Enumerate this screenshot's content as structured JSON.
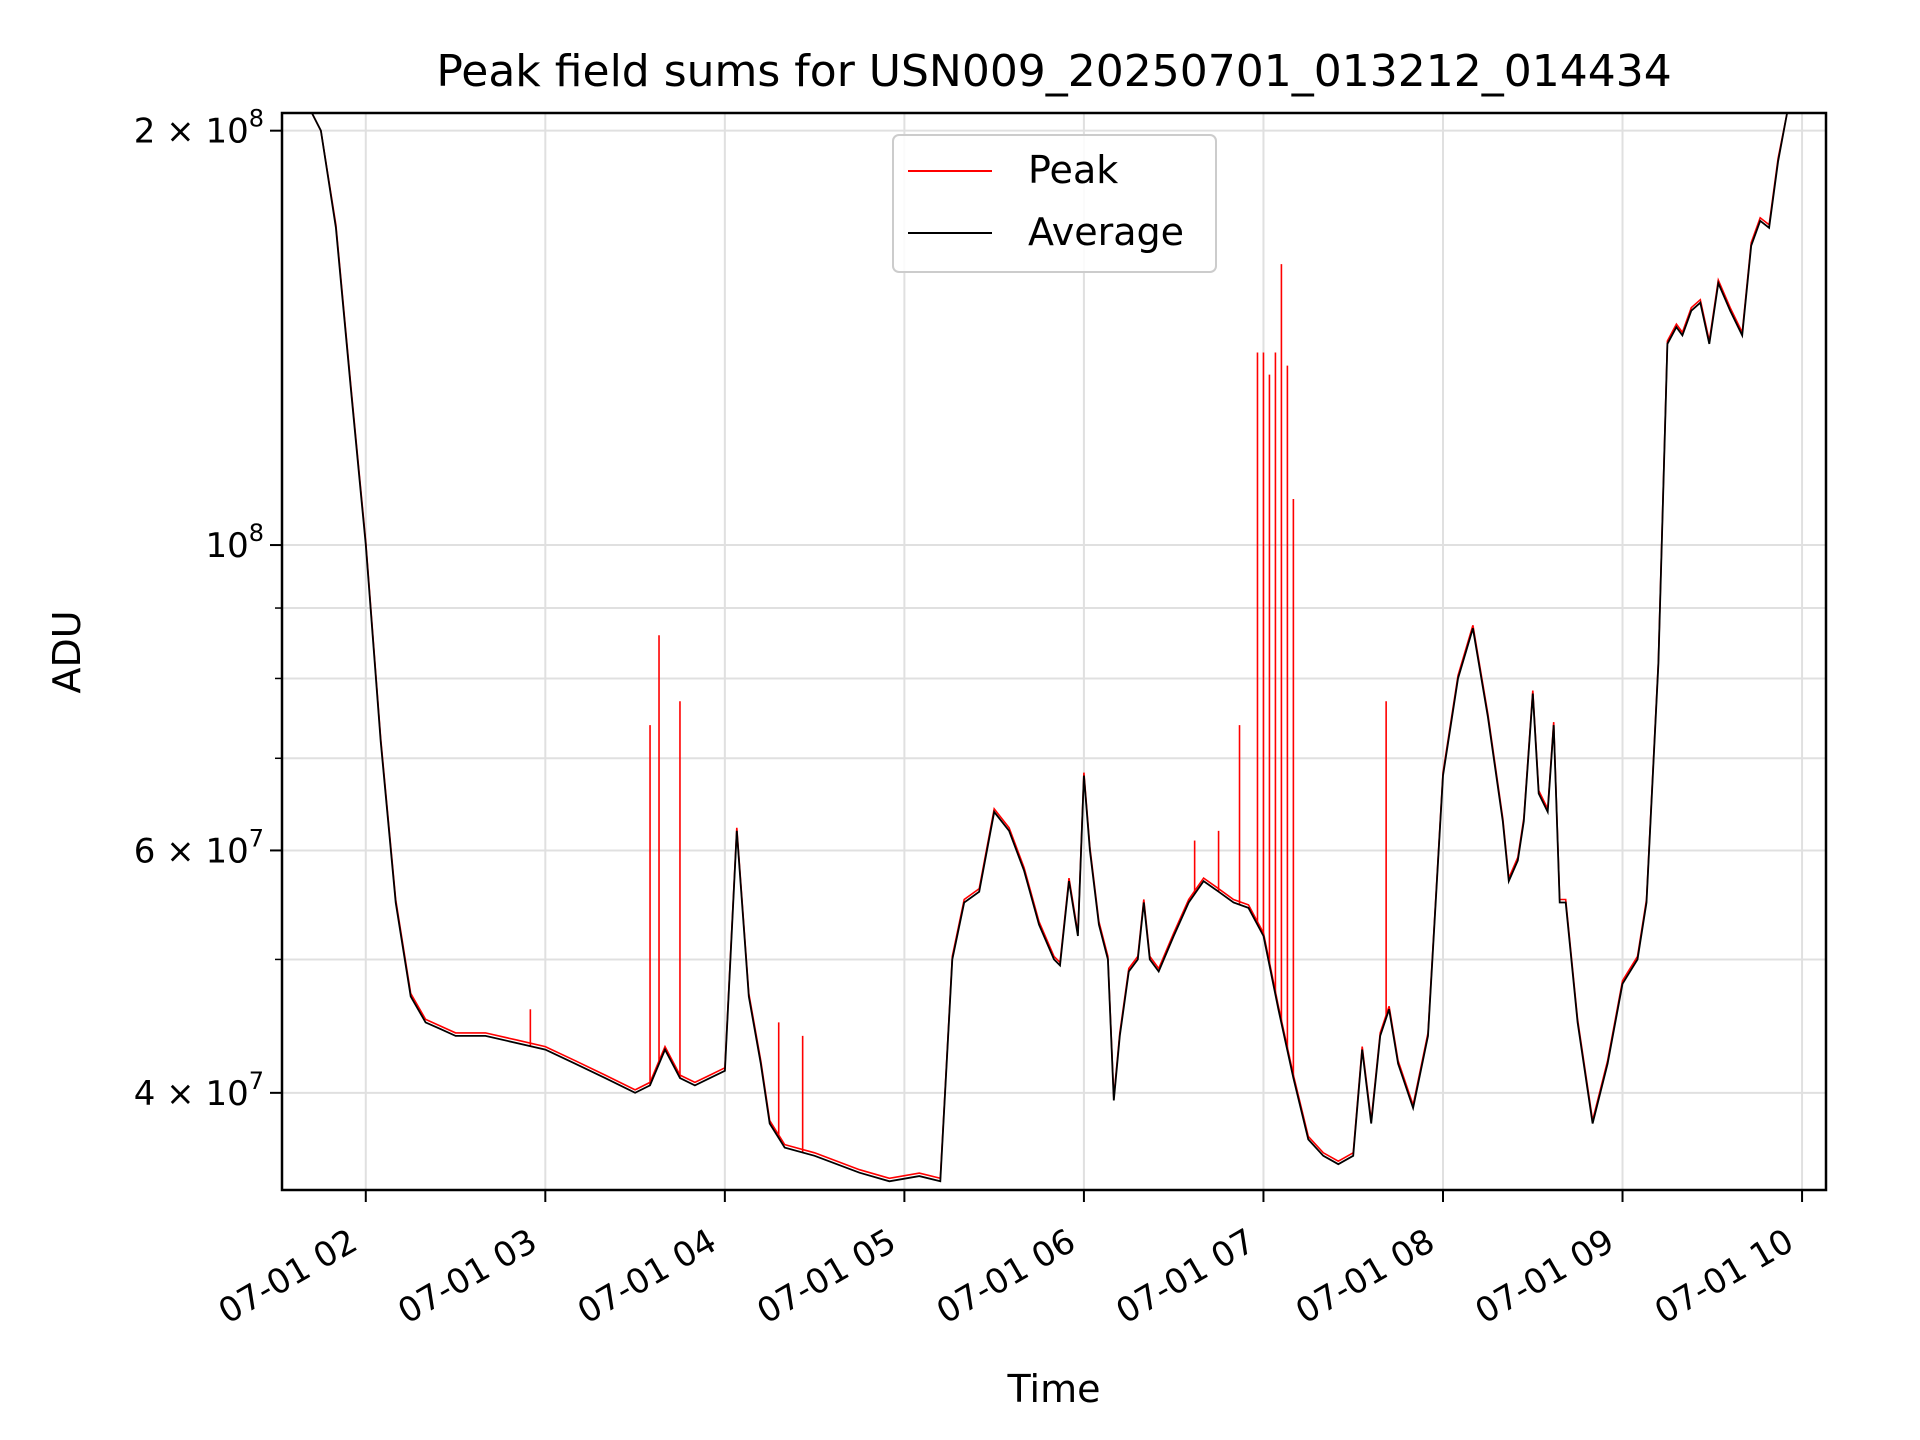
{
  "chart_data": {
    "type": "line",
    "title": "Peak field sums for USN009_20250701_013212_014434",
    "xlabel": "Time",
    "ylabel": "ADU",
    "yscale": "log",
    "ylim": [
      34000000,
      206000000
    ],
    "xlim": [
      "2025-07-01T01:32:00",
      "2025-07-01T10:08:00"
    ],
    "grid": true,
    "legend_position": "upper center",
    "x_ticks": [
      {
        "x": "2025-07-01T02:00",
        "label": "07-01 02"
      },
      {
        "x": "2025-07-01T03:00",
        "label": "07-01 03"
      },
      {
        "x": "2025-07-01T04:00",
        "label": "07-01 04"
      },
      {
        "x": "2025-07-01T05:00",
        "label": "07-01 05"
      },
      {
        "x": "2025-07-01T06:00",
        "label": "07-01 06"
      },
      {
        "x": "2025-07-01T07:00",
        "label": "07-01 07"
      },
      {
        "x": "2025-07-01T08:00",
        "label": "07-01 08"
      },
      {
        "x": "2025-07-01T09:00",
        "label": "07-01 09"
      },
      {
        "x": "2025-07-01T10:00",
        "label": "07-01 10"
      }
    ],
    "y_major_ticks": [
      {
        "y": 40000000,
        "base": "4 × 10",
        "exp": "7"
      },
      {
        "y": 60000000,
        "base": "6 × 10",
        "exp": "7"
      },
      {
        "y": 100000000,
        "base": "10",
        "exp": "8"
      },
      {
        "y": 200000000,
        "base": "2 × 10",
        "exp": "8"
      }
    ],
    "y_minor_ticks": [
      50000000,
      70000000,
      80000000,
      90000000
    ],
    "series": [
      {
        "name": "Peak",
        "color": "#ff0000"
      },
      {
        "name": "Average",
        "color": "#000000"
      }
    ],
    "average": {
      "x": [
        "2025-07-01T01:32",
        "2025-07-01T01:42",
        "2025-07-01T01:45",
        "2025-07-01T01:50",
        "2025-07-01T01:55",
        "2025-07-01T02:00",
        "2025-07-01T02:05",
        "2025-07-01T02:10",
        "2025-07-01T02:15",
        "2025-07-01T02:20",
        "2025-07-01T02:25",
        "2025-07-01T02:30",
        "2025-07-01T02:40",
        "2025-07-01T02:50",
        "2025-07-01T03:00",
        "2025-07-01T03:10",
        "2025-07-01T03:20",
        "2025-07-01T03:30",
        "2025-07-01T03:35",
        "2025-07-01T03:40",
        "2025-07-01T03:45",
        "2025-07-01T03:50",
        "2025-07-01T03:55",
        "2025-07-01T04:00",
        "2025-07-01T04:04",
        "2025-07-01T04:08",
        "2025-07-01T04:12",
        "2025-07-01T04:15",
        "2025-07-01T04:20",
        "2025-07-01T04:30",
        "2025-07-01T04:45",
        "2025-07-01T04:55",
        "2025-07-01T05:05",
        "2025-07-01T05:12",
        "2025-07-01T05:16",
        "2025-07-01T05:20",
        "2025-07-01T05:25",
        "2025-07-01T05:30",
        "2025-07-01T05:35",
        "2025-07-01T05:40",
        "2025-07-01T05:45",
        "2025-07-01T05:50",
        "2025-07-01T05:52",
        "2025-07-01T05:55",
        "2025-07-01T05:58",
        "2025-07-01T06:00",
        "2025-07-01T06:02",
        "2025-07-01T06:05",
        "2025-07-01T06:08",
        "2025-07-01T06:10",
        "2025-07-01T06:12",
        "2025-07-01T06:15",
        "2025-07-01T06:18",
        "2025-07-01T06:20",
        "2025-07-01T06:22",
        "2025-07-01T06:25",
        "2025-07-01T06:30",
        "2025-07-01T06:35",
        "2025-07-01T06:40",
        "2025-07-01T06:45",
        "2025-07-01T06:50",
        "2025-07-01T06:55",
        "2025-07-01T07:00",
        "2025-07-01T07:05",
        "2025-07-01T07:10",
        "2025-07-01T07:15",
        "2025-07-01T07:20",
        "2025-07-01T07:25",
        "2025-07-01T07:30",
        "2025-07-01T07:33",
        "2025-07-01T07:36",
        "2025-07-01T07:39",
        "2025-07-01T07:42",
        "2025-07-01T07:45",
        "2025-07-01T07:50",
        "2025-07-01T07:55",
        "2025-07-01T08:00",
        "2025-07-01T08:05",
        "2025-07-01T08:10",
        "2025-07-01T08:15",
        "2025-07-01T08:20",
        "2025-07-01T08:22",
        "2025-07-01T08:25",
        "2025-07-01T08:27",
        "2025-07-01T08:30",
        "2025-07-01T08:32",
        "2025-07-01T08:35",
        "2025-07-01T08:37",
        "2025-07-01T08:39",
        "2025-07-01T08:41",
        "2025-07-01T08:45",
        "2025-07-01T08:50",
        "2025-07-01T08:55",
        "2025-07-01T09:00",
        "2025-07-01T09:05",
        "2025-07-01T09:08",
        "2025-07-01T09:12",
        "2025-07-01T09:15",
        "2025-07-01T09:18",
        "2025-07-01T09:20",
        "2025-07-01T09:23",
        "2025-07-01T09:26",
        "2025-07-01T09:29",
        "2025-07-01T09:32",
        "2025-07-01T09:36",
        "2025-07-01T09:40",
        "2025-07-01T09:43",
        "2025-07-01T09:46",
        "2025-07-01T09:49",
        "2025-07-01T09:52",
        "2025-07-01T09:55",
        "2025-07-01T10:00",
        "2025-07-01T10:08"
      ],
      "y": [
        206000000,
        206000000,
        200000000,
        170000000,
        130000000,
        100000000,
        72000000,
        55000000,
        47000000,
        45000000,
        44500000,
        44000000,
        44000000,
        43500000,
        43000000,
        42000000,
        41000000,
        40000000,
        40500000,
        43000000,
        41000000,
        40500000,
        41000000,
        41500000,
        62000000,
        47000000,
        42000000,
        38000000,
        36500000,
        36000000,
        35000000,
        34500000,
        34800000,
        34500000,
        50000000,
        55000000,
        56000000,
        64000000,
        62000000,
        58000000,
        53000000,
        50000000,
        49500000,
        57000000,
        52000000,
        68000000,
        60000000,
        53000000,
        50000000,
        39500000,
        44000000,
        49000000,
        50000000,
        55000000,
        50000000,
        49000000,
        52000000,
        55000000,
        57000000,
        56000000,
        55000000,
        54500000,
        52000000,
        46000000,
        41000000,
        37000000,
        36000000,
        35500000,
        36000000,
        43000000,
        38000000,
        44000000,
        46000000,
        42000000,
        39000000,
        44000000,
        68000000,
        80000000,
        87000000,
        75000000,
        63000000,
        57000000,
        59000000,
        63000000,
        78000000,
        66000000,
        64000000,
        74000000,
        55000000,
        55000000,
        45000000,
        38000000,
        42000000,
        48000000,
        50000000,
        55000000,
        82000000,
        140000000,
        144000000,
        142000000,
        148000000,
        150000000,
        140000000,
        155000000,
        148000000,
        142000000,
        165000000,
        172000000,
        170000000,
        190000000,
        206000000,
        206000000,
        206000000
      ]
    },
    "peak_spikes": [
      {
        "x": "2025-07-01T02:55",
        "y": 46000000
      },
      {
        "x": "2025-07-01T03:35",
        "y": 74000000
      },
      {
        "x": "2025-07-01T03:38",
        "y": 86000000
      },
      {
        "x": "2025-07-01T03:45",
        "y": 77000000
      },
      {
        "x": "2025-07-01T04:18",
        "y": 45000000
      },
      {
        "x": "2025-07-01T04:26",
        "y": 44000000
      },
      {
        "x": "2025-07-01T06:37",
        "y": 61000000
      },
      {
        "x": "2025-07-01T06:45",
        "y": 62000000
      },
      {
        "x": "2025-07-01T06:52",
        "y": 74000000
      },
      {
        "x": "2025-07-01T06:58",
        "y": 138000000
      },
      {
        "x": "2025-07-01T07:00",
        "y": 138000000
      },
      {
        "x": "2025-07-01T07:02",
        "y": 133000000
      },
      {
        "x": "2025-07-01T07:04",
        "y": 138000000
      },
      {
        "x": "2025-07-01T07:06",
        "y": 160000000
      },
      {
        "x": "2025-07-01T07:08",
        "y": 135000000
      },
      {
        "x": "2025-07-01T07:10",
        "y": 108000000
      },
      {
        "x": "2025-07-01T07:41",
        "y": 77000000
      }
    ]
  }
}
